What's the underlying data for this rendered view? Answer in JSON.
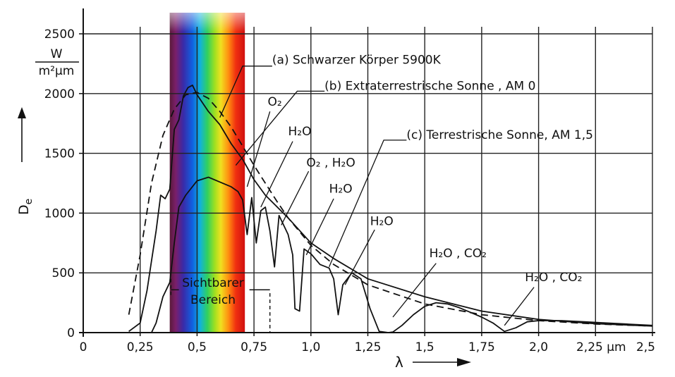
{
  "chart_data": {
    "type": "line",
    "xlim": [
      0,
      2.5
    ],
    "ylim": [
      0,
      2500
    ],
    "grid": true,
    "x_ticks": [
      0,
      0.25,
      0.5,
      0.75,
      1.0,
      1.25,
      1.5,
      1.75,
      2.0,
      2.25,
      2.5
    ],
    "x_tick_labels": [
      "0",
      "0,25",
      "0,5",
      "0,75",
      "1,0",
      "1,25",
      "1,5",
      "1,75",
      "2,0",
      "2,25 µm",
      "2,5"
    ],
    "y_ticks": [
      0,
      500,
      1000,
      1500,
      2000,
      2500
    ],
    "y_tick_labels": [
      "0",
      "500",
      "1000",
      "1500",
      "2000",
      "2500"
    ],
    "xlabel": "λ",
    "ylabel": "D",
    "ylabel_sub": "e",
    "y_unit": {
      "numerator": "W",
      "denominator": "m²µm"
    },
    "visible_band": {
      "range": [
        0.38,
        0.71
      ],
      "label_line1": "Sichtbarer",
      "label_line2": "Bereich"
    },
    "series": [
      {
        "name": "(a) Schwarzer Körper 5900K",
        "style": "dashed",
        "x": [
          0.2,
          0.25,
          0.3,
          0.35,
          0.4,
          0.45,
          0.5,
          0.55,
          0.6,
          0.65,
          0.7,
          0.75,
          0.8,
          0.85,
          0.9,
          1.0,
          1.1,
          1.25,
          1.5,
          1.75,
          2.0,
          2.25,
          2.5
        ],
        "y": [
          150,
          650,
          1250,
          1650,
          1870,
          1990,
          2010,
          1960,
          1850,
          1720,
          1560,
          1400,
          1250,
          1100,
          960,
          730,
          570,
          400,
          240,
          150,
          100,
          72,
          55
        ]
      },
      {
        "name": "(b) Extraterrestrische Sonne , AM 0",
        "style": "solid",
        "x": [
          0.2,
          0.25,
          0.28,
          0.3,
          0.32,
          0.34,
          0.36,
          0.38,
          0.4,
          0.42,
          0.44,
          0.46,
          0.48,
          0.5,
          0.55,
          0.6,
          0.65,
          0.7,
          0.75,
          0.8,
          0.9,
          1.0,
          1.1,
          1.25,
          1.5,
          1.75,
          2.0,
          2.25,
          2.5
        ],
        "y": [
          10,
          80,
          350,
          600,
          850,
          1150,
          1120,
          1200,
          1700,
          1780,
          1980,
          2050,
          2070,
          1990,
          1850,
          1740,
          1580,
          1450,
          1280,
          1150,
          960,
          750,
          620,
          450,
          300,
          180,
          110,
          75,
          55
        ]
      },
      {
        "name": "(c) Terrestrische Sonne, AM 1,5",
        "style": "solid",
        "x": [
          0.3,
          0.32,
          0.35,
          0.38,
          0.4,
          0.42,
          0.45,
          0.5,
          0.55,
          0.6,
          0.65,
          0.68,
          0.7,
          0.72,
          0.74,
          0.76,
          0.78,
          0.8,
          0.82,
          0.84,
          0.86,
          0.88,
          0.9,
          0.92,
          0.93,
          0.95,
          0.97,
          1.0,
          1.04,
          1.08,
          1.1,
          1.12,
          1.14,
          1.18,
          1.22,
          1.26,
          1.3,
          1.34,
          1.36,
          1.4,
          1.45,
          1.5,
          1.55,
          1.6,
          1.65,
          1.7,
          1.75,
          1.8,
          1.85,
          1.9,
          1.95,
          2.0,
          2.1,
          2.2,
          2.3,
          2.4,
          2.5
        ],
        "y": [
          0,
          80,
          300,
          420,
          750,
          1050,
          1150,
          1270,
          1300,
          1260,
          1220,
          1180,
          1110,
          820,
          1130,
          750,
          1020,
          1050,
          850,
          550,
          980,
          900,
          820,
          650,
          200,
          180,
          700,
          660,
          570,
          540,
          450,
          150,
          400,
          500,
          450,
          200,
          10,
          0,
          5,
          60,
          150,
          220,
          250,
          240,
          210,
          170,
          130,
          80,
          10,
          40,
          90,
          100,
          100,
          90,
          80,
          70,
          60
        ]
      }
    ],
    "annotations": [
      {
        "text": "(a) Schwarzer Körper 5900K",
        "x": 0.83,
        "y": 2250
      },
      {
        "text": "(b) Extraterrestrische Sonne , AM 0",
        "x": 1.06,
        "y": 2030
      },
      {
        "text": "(c) Terrestrische Sonne, AM 1,5",
        "x": 1.42,
        "y": 1620
      },
      {
        "text": "O₂",
        "x": 0.81,
        "y": 1900
      },
      {
        "text": "H₂O",
        "x": 0.9,
        "y": 1650
      },
      {
        "text": "O₂ , H₂O",
        "x": 0.98,
        "y": 1390
      },
      {
        "text": "H₂O",
        "x": 1.08,
        "y": 1170
      },
      {
        "text": "H₂O",
        "x": 1.26,
        "y": 900
      },
      {
        "text": "H₂O , CO₂",
        "x": 1.52,
        "y": 630
      },
      {
        "text": "H₂O , CO₂",
        "x": 1.94,
        "y": 430
      }
    ]
  }
}
